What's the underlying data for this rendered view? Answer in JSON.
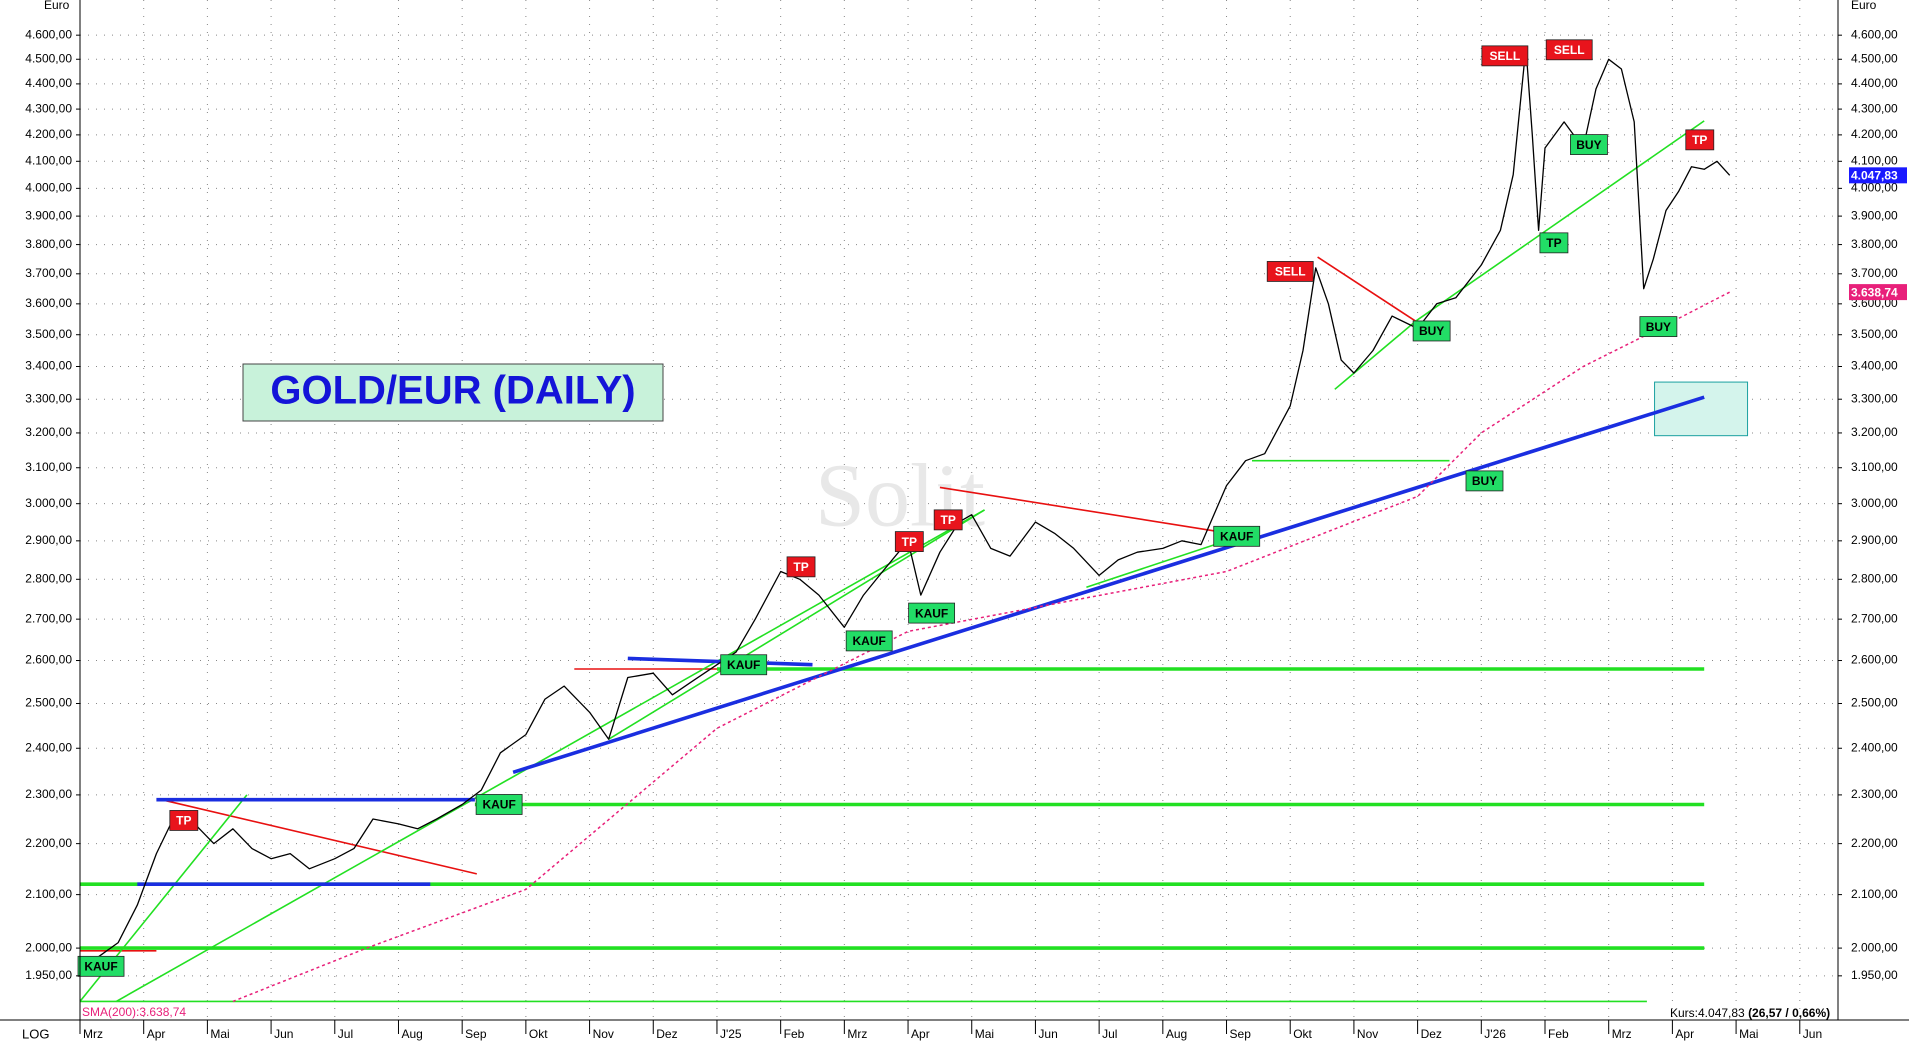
{
  "chart_data": {
    "type": "line",
    "title": "GOLD/EUR (DAILY)",
    "y_unit": "Euro",
    "scale_label": "LOG",
    "log_scale": true,
    "grid": true,
    "watermark": "Solit",
    "xlim": [
      0,
      27.6
    ],
    "ylim": [
      1873,
      4750
    ],
    "xticks": [
      {
        "value": 0,
        "label": "Mrz"
      },
      {
        "value": 1,
        "label": "Apr"
      },
      {
        "value": 2,
        "label": "Mai"
      },
      {
        "value": 3,
        "label": "Jun"
      },
      {
        "value": 4,
        "label": "Jul"
      },
      {
        "value": 5,
        "label": "Aug"
      },
      {
        "value": 6,
        "label": "Sep"
      },
      {
        "value": 7,
        "label": "Okt"
      },
      {
        "value": 8,
        "label": "Nov"
      },
      {
        "value": 9,
        "label": "Dez"
      },
      {
        "value": 10,
        "label": "J'25"
      },
      {
        "value": 11,
        "label": "Feb"
      },
      {
        "value": 12,
        "label": "Mrz"
      },
      {
        "value": 13,
        "label": "Apr"
      },
      {
        "value": 14,
        "label": "Mai"
      },
      {
        "value": 15,
        "label": "Jun"
      },
      {
        "value": 16,
        "label": "Jul"
      },
      {
        "value": 17,
        "label": "Aug"
      },
      {
        "value": 18,
        "label": "Sep"
      },
      {
        "value": 19,
        "label": "Okt"
      },
      {
        "value": 20,
        "label": "Nov"
      },
      {
        "value": 21,
        "label": "Dez"
      },
      {
        "value": 22,
        "label": "J'26"
      },
      {
        "value": 23,
        "label": "Feb"
      },
      {
        "value": 24,
        "label": "Mrz"
      },
      {
        "value": 25,
        "label": "Apr"
      },
      {
        "value": 26,
        "label": "Mai"
      },
      {
        "value": 27,
        "label": "Jun"
      }
    ],
    "yticks": [
      {
        "value": 1950,
        "label": "1.950,00"
      },
      {
        "value": 2000,
        "label": "2.000,00"
      },
      {
        "value": 2100,
        "label": "2.100,00"
      },
      {
        "value": 2200,
        "label": "2.200,00"
      },
      {
        "value": 2300,
        "label": "2.300,00"
      },
      {
        "value": 2400,
        "label": "2.400,00"
      },
      {
        "value": 2500,
        "label": "2.500,00"
      },
      {
        "value": 2600,
        "label": "2.600,00"
      },
      {
        "value": 2700,
        "label": "2.700,00"
      },
      {
        "value": 2800,
        "label": "2.800,00"
      },
      {
        "value": 2900,
        "label": "2.900,00"
      },
      {
        "value": 3000,
        "label": "3.000,00"
      },
      {
        "value": 3100,
        "label": "3.100,00"
      },
      {
        "value": 3200,
        "label": "3.200,00"
      },
      {
        "value": 3300,
        "label": "3.300,00"
      },
      {
        "value": 3400,
        "label": "3.400,00"
      },
      {
        "value": 3500,
        "label": "3.500,00"
      },
      {
        "value": 3600,
        "label": "3.600,00"
      },
      {
        "value": 3700,
        "label": "3.700,00"
      },
      {
        "value": 3800,
        "label": "3.800,00"
      },
      {
        "value": 3900,
        "label": "3.900,00"
      },
      {
        "value": 4000,
        "label": "4.000,00"
      },
      {
        "value": 4100,
        "label": "4.100,00"
      },
      {
        "value": 4200,
        "label": "4.200,00"
      },
      {
        "value": 4300,
        "label": "4.300,00"
      },
      {
        "value": 4400,
        "label": "4.400,00"
      },
      {
        "value": 4500,
        "label": "4.500,00"
      },
      {
        "value": 4600,
        "label": "4.600,00"
      }
    ],
    "price": {
      "color": "#000000",
      "x": [
        0,
        0.3,
        0.6,
        0.9,
        1.2,
        1.5,
        1.8,
        2.1,
        2.4,
        2.7,
        3.0,
        3.3,
        3.6,
        4.0,
        4.3,
        4.6,
        5.0,
        5.3,
        5.6,
        6.0,
        6.3,
        6.6,
        7.0,
        7.3,
        7.6,
        8.0,
        8.3,
        8.6,
        9.0,
        9.3,
        9.6,
        10.0,
        10.3,
        10.6,
        11.0,
        11.3,
        11.6,
        12.0,
        12.3,
        12.6,
        13.0,
        13.2,
        13.5,
        13.8,
        14.0,
        14.3,
        14.6,
        15.0,
        15.3,
        15.6,
        16.0,
        16.3,
        16.6,
        17.0,
        17.3,
        17.6,
        18.0,
        18.3,
        18.6,
        19.0,
        19.2,
        19.4,
        19.6,
        19.8,
        20.0,
        20.3,
        20.6,
        21.0,
        21.3,
        21.6,
        22.0,
        22.3,
        22.5,
        22.7,
        22.8,
        22.9,
        23.0,
        23.3,
        23.6,
        23.8,
        24.0,
        24.2,
        24.4,
        24.55,
        24.7,
        24.9,
        25.1,
        25.3,
        25.5,
        25.7,
        25.9
      ],
      "values": [
        1960,
        1985,
        2010,
        2080,
        2180,
        2260,
        2240,
        2200,
        2230,
        2190,
        2170,
        2180,
        2150,
        2170,
        2190,
        2250,
        2240,
        2230,
        2250,
        2280,
        2310,
        2390,
        2430,
        2510,
        2540,
        2480,
        2420,
        2560,
        2570,
        2520,
        2550,
        2590,
        2620,
        2700,
        2820,
        2800,
        2760,
        2680,
        2760,
        2820,
        2900,
        2760,
        2870,
        2950,
        2970,
        2880,
        2860,
        2950,
        2920,
        2880,
        2810,
        2850,
        2870,
        2880,
        2900,
        2890,
        3050,
        3120,
        3140,
        3280,
        3450,
        3720,
        3600,
        3420,
        3380,
        3450,
        3560,
        3520,
        3600,
        3620,
        3730,
        3850,
        4050,
        4550,
        4200,
        3850,
        4150,
        4250,
        4150,
        4380,
        4500,
        4460,
        4250,
        3650,
        3750,
        3920,
        3990,
        4080,
        4070,
        4100,
        4047.83
      ]
    },
    "sma": {
      "name": "SMA(200):3.638,74",
      "color": "#e8207a",
      "x": [
        2.4,
        4.5,
        7.0,
        10.0,
        13.0,
        18.0,
        21.0,
        22.0,
        23.6,
        24.6,
        25.9
      ],
      "values": [
        1905,
        2000,
        2110,
        2444,
        2670,
        2820,
        3020,
        3200,
        3400,
        3500,
        3638.74
      ]
    },
    "last_price": {
      "value": 4047.83,
      "label": "4.047,83",
      "color": "#1a1aff"
    },
    "sma_last": {
      "value": 3638.74,
      "label": "3.638,74",
      "color": "#e8207a"
    },
    "quote_label": "Kurs:4.047,83",
    "quote_change": "(26,57 / 0,66%)",
    "support_lines": [
      {
        "color": "#22e022",
        "x": [
          0,
          25.5
        ],
        "values": [
          2000,
          2000
        ]
      },
      {
        "color": "#22e022",
        "x": [
          0,
          25.5
        ],
        "values": [
          2120,
          2120
        ]
      },
      {
        "color": "#22e022",
        "x": [
          6.2,
          25.5
        ],
        "values": [
          2280,
          2280
        ]
      },
      {
        "color": "#22e022",
        "x": [
          10,
          25.5
        ],
        "values": [
          2580,
          2580
        ]
      },
      {
        "color": "#1a2ee0",
        "x": [
          1.2,
          6.2
        ],
        "values": [
          2290,
          2290
        ]
      },
      {
        "color": "#1a2ee0",
        "x": [
          0.9,
          5.5
        ],
        "values": [
          2120,
          2120
        ]
      },
      {
        "color": "#1a2ee0",
        "x": [
          6.8,
          25.5
        ],
        "values": [
          2348,
          3306
        ]
      },
      {
        "color": "#1a2ee0",
        "x": [
          8.6,
          11.5
        ],
        "values": [
          2605,
          2590
        ]
      }
    ],
    "trend_lines": [
      {
        "color": "#22e022",
        "x": [
          18.4,
          21.5
        ],
        "values": [
          3120,
          3120
        ]
      },
      {
        "color": "#22e022",
        "x": [
          0,
          24.6
        ],
        "values": [
          1905,
          1905
        ]
      },
      {
        "color": "#e81010",
        "x": [
          0,
          1.2
        ],
        "values": [
          1995,
          1995
        ]
      },
      {
        "color": "#e81010",
        "x": [
          1.28,
          6.23
        ],
        "values": [
          2290,
          2140
        ]
      },
      {
        "color": "#e81010",
        "x": [
          7.76,
          11.36
        ],
        "values": [
          2580,
          2580
        ]
      },
      {
        "color": "#e81010",
        "x": [
          13.5,
          17.86
        ],
        "values": [
          3045,
          2925
        ]
      },
      {
        "color": "#e81010",
        "x": [
          19.43,
          20.98
        ],
        "values": [
          3757,
          3542
        ]
      },
      {
        "color": "#22e022",
        "x": [
          0,
          2.62
        ],
        "values": [
          1905,
          2300
        ]
      },
      {
        "color": "#22e022",
        "x": [
          0.57,
          14.2
        ],
        "values": [
          1905,
          2983
        ]
      },
      {
        "color": "#22e022",
        "x": [
          8.3,
          14.2
        ],
        "values": [
          2420,
          2983
        ]
      },
      {
        "color": "#22e022",
        "x": [
          15.8,
          18.0
        ],
        "values": [
          2780,
          2900
        ]
      },
      {
        "color": "#22e022",
        "x": [
          19.7,
          20.98
        ],
        "values": [
          3330,
          3545
        ]
      },
      {
        "color": "#22e022",
        "x": [
          20.98,
          25.5
        ],
        "values": [
          3545,
          4254
        ]
      }
    ],
    "target_zone": {
      "color": "#1aa0a0",
      "x": [
        24.72,
        26.18
      ],
      "values": [
        3192,
        3352
      ]
    },
    "signals": [
      {
        "label": "KAUF",
        "color": "#22dd66",
        "x": 0.33,
        "y": 1967
      },
      {
        "label": "TP",
        "color": "#e8141c",
        "x": 1.63,
        "y": 2247
      },
      {
        "label": "KAUF",
        "color": "#22dd66",
        "x": 6.58,
        "y": 2280
      },
      {
        "label": "KAUF",
        "color": "#22dd66",
        "x": 10.42,
        "y": 2590
      },
      {
        "label": "TP",
        "color": "#e8141c",
        "x": 11.32,
        "y": 2832
      },
      {
        "label": "KAUF",
        "color": "#22dd66",
        "x": 12.39,
        "y": 2647
      },
      {
        "label": "TP",
        "color": "#e8141c",
        "x": 13.02,
        "y": 2898
      },
      {
        "label": "KAUF",
        "color": "#22dd66",
        "x": 13.37,
        "y": 2715
      },
      {
        "label": "TP",
        "color": "#e8141c",
        "x": 13.63,
        "y": 2956
      },
      {
        "label": "KAUF",
        "color": "#22dd66",
        "x": 18.16,
        "y": 2912
      },
      {
        "label": "SELL",
        "color": "#e8141c",
        "x": 19.0,
        "y": 3708
      },
      {
        "label": "BUY",
        "color": "#22dd66",
        "x": 21.22,
        "y": 3512
      },
      {
        "label": "BUY",
        "color": "#22dd66",
        "x": 22.05,
        "y": 3063
      },
      {
        "label": "SELL",
        "color": "#e8141c",
        "x": 22.37,
        "y": 4514
      },
      {
        "label": "SELL",
        "color": "#e8141c",
        "x": 23.38,
        "y": 4539
      },
      {
        "label": "BUY",
        "color": "#22dd66",
        "x": 23.69,
        "y": 4163
      },
      {
        "label": "TP",
        "color": "#22dd66",
        "x": 23.14,
        "y": 3806
      },
      {
        "label": "BUY",
        "color": "#22dd66",
        "x": 24.78,
        "y": 3526
      },
      {
        "label": "TP",
        "color": "#e8141c",
        "x": 25.43,
        "y": 4181
      }
    ]
  }
}
